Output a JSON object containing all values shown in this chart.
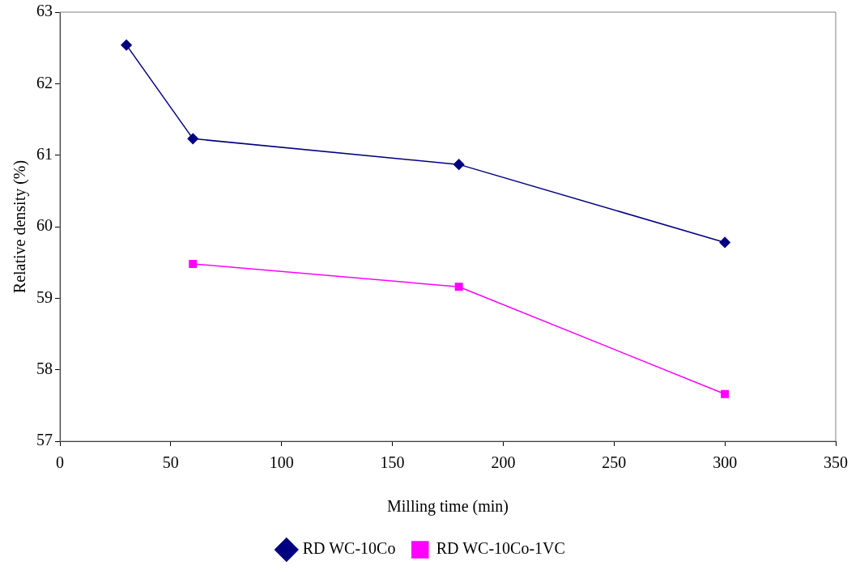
{
  "chart_data": {
    "type": "line",
    "xlabel": "Milling time (min)",
    "ylabel": "Relative density (%)",
    "xlim": [
      0,
      350
    ],
    "xticks": [
      0,
      50,
      100,
      150,
      200,
      250,
      300,
      350
    ],
    "ylim": [
      57,
      63
    ],
    "yticks": [
      57,
      58,
      59,
      60,
      61,
      62,
      63
    ],
    "grid": false,
    "legend": "bottom",
    "line_style": "solid",
    "series": [
      {
        "name": "RD WC-10Co",
        "color": "#000080",
        "marker": "diamond",
        "x": [
          30,
          60,
          180,
          300
        ],
        "values": [
          62.54,
          61.23,
          60.87,
          59.78
        ]
      },
      {
        "name": "RD WC-10Co-1VC",
        "color": "#ff00ff",
        "marker": "square",
        "x": [
          60,
          180,
          300
        ],
        "values": [
          59.48,
          59.16,
          57.66
        ]
      }
    ]
  }
}
